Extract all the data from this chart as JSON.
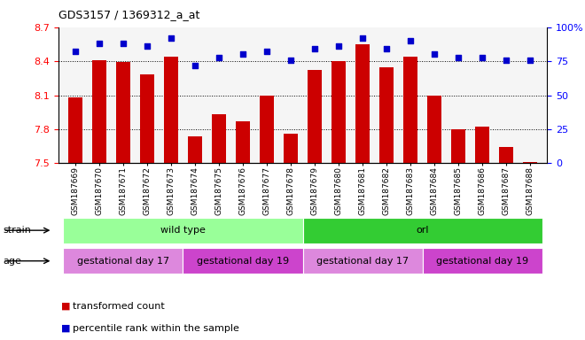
{
  "title": "GDS3157 / 1369312_a_at",
  "samples": [
    "GSM187669",
    "GSM187670",
    "GSM187671",
    "GSM187672",
    "GSM187673",
    "GSM187674",
    "GSM187675",
    "GSM187676",
    "GSM187677",
    "GSM187678",
    "GSM187679",
    "GSM187680",
    "GSM187681",
    "GSM187682",
    "GSM187683",
    "GSM187684",
    "GSM187685",
    "GSM187686",
    "GSM187687",
    "GSM187688"
  ],
  "bar_values": [
    8.08,
    8.41,
    8.39,
    8.28,
    8.44,
    7.74,
    7.93,
    7.87,
    8.1,
    7.76,
    8.32,
    8.4,
    8.55,
    8.35,
    8.44,
    8.1,
    7.8,
    7.82,
    7.64,
    7.51
  ],
  "percentile_values": [
    82,
    88,
    88,
    86,
    92,
    72,
    78,
    80,
    82,
    76,
    84,
    86,
    92,
    84,
    90,
    80,
    78,
    78,
    76,
    76
  ],
  "ylim_left": [
    7.5,
    8.7
  ],
  "ylim_right": [
    0,
    100
  ],
  "yticks_left": [
    7.5,
    7.8,
    8.1,
    8.4,
    8.7
  ],
  "yticks_right": [
    0,
    25,
    50,
    75,
    100
  ],
  "bar_color": "#cc0000",
  "dot_color": "#0000cc",
  "strain_groups": [
    {
      "label": "wild type",
      "start": 0,
      "end": 10,
      "color": "#99ff99"
    },
    {
      "label": "orl",
      "start": 10,
      "end": 20,
      "color": "#33cc33"
    }
  ],
  "age_groups": [
    {
      "label": "gestational day 17",
      "start": 0,
      "end": 5,
      "color": "#dd88dd"
    },
    {
      "label": "gestational day 19",
      "start": 5,
      "end": 10,
      "color": "#cc44cc"
    },
    {
      "label": "gestational day 17",
      "start": 10,
      "end": 15,
      "color": "#dd88dd"
    },
    {
      "label": "gestational day 19",
      "start": 15,
      "end": 20,
      "color": "#cc44cc"
    }
  ],
  "legend_items": [
    {
      "label": "transformed count",
      "color": "#cc0000"
    },
    {
      "label": "percentile rank within the sample",
      "color": "#0000cc"
    }
  ],
  "background_color": "#ffffff"
}
